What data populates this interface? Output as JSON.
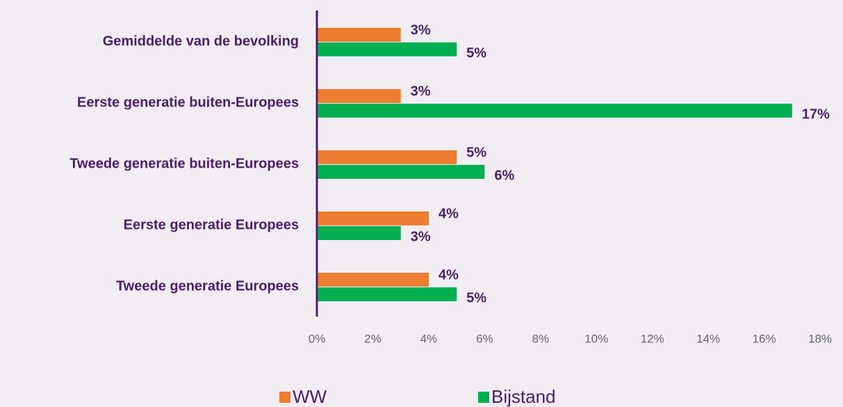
{
  "chart_data": {
    "type": "bar",
    "orientation": "horizontal",
    "categories": [
      "Gemiddelde van de bevolking",
      "Eerste generatie buiten-Europees",
      "Tweede generatie buiten-Europees",
      "Eerste generatie Europees",
      "Tweede generatie Europees"
    ],
    "series": [
      {
        "name": "WW",
        "color": "#ed7d31",
        "values": [
          3,
          3,
          5,
          4,
          4
        ],
        "value_labels": [
          "3%",
          "3%",
          "5%",
          "4%",
          "4%"
        ]
      },
      {
        "name": "Bijstand",
        "color": "#00b050",
        "values": [
          5,
          17,
          6,
          3,
          5
        ],
        "value_labels": [
          "5%",
          "17%",
          "6%",
          "3%",
          "5%"
        ]
      }
    ],
    "xlim": [
      0,
      18
    ],
    "xticks": [
      {
        "value": 0,
        "label": "0%"
      },
      {
        "value": 2,
        "label": "2%"
      },
      {
        "value": 4,
        "label": "4%"
      },
      {
        "value": 6,
        "label": "6%"
      },
      {
        "value": 8,
        "label": "8%"
      },
      {
        "value": 10,
        "label": "10%"
      },
      {
        "value": 12,
        "label": "12%"
      },
      {
        "value": 14,
        "label": "14%"
      },
      {
        "value": 16,
        "label": "16%"
      },
      {
        "value": 18,
        "label": "18%"
      }
    ],
    "grid": false,
    "legend": "bottom"
  }
}
